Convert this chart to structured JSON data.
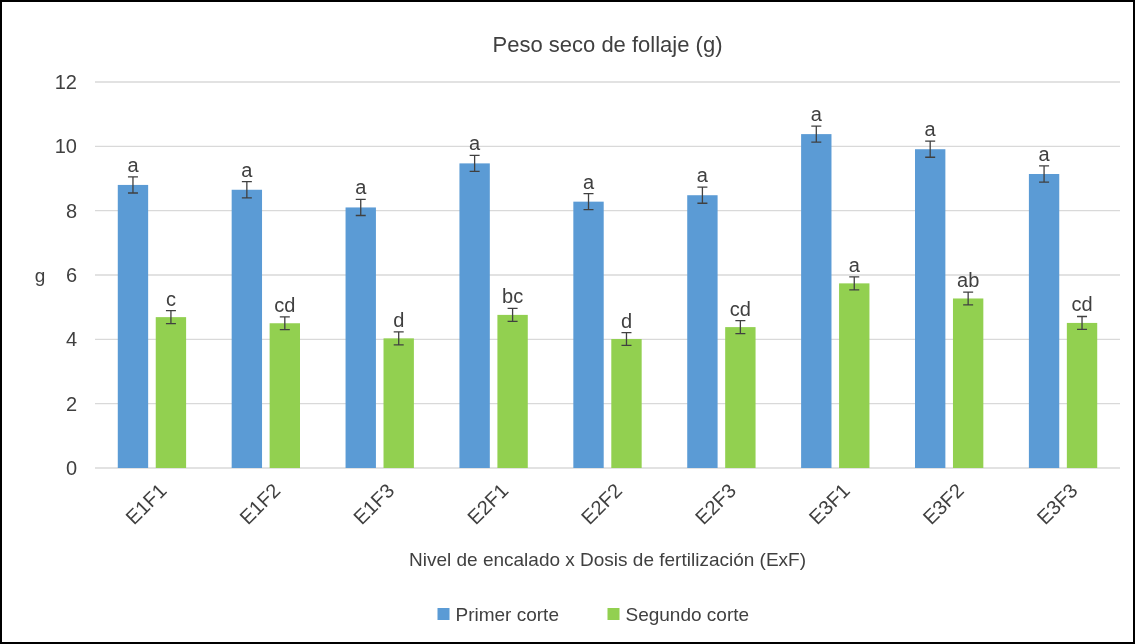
{
  "chart_data": {
    "type": "bar",
    "title": "Peso seco de follaje (g)",
    "xlabel": "Nivel de encalado x Dosis de fertilización (ExF)",
    "ylabel": "g",
    "categories": [
      "E1F1",
      "E1F2",
      "E1F3",
      "E2F1",
      "E2F2",
      "E2F3",
      "E3F1",
      "E3F2",
      "E3F3"
    ],
    "series": [
      {
        "name": "Primer corte",
        "color": "#5b9bd5",
        "values": [
          8.8,
          8.65,
          8.1,
          9.47,
          8.28,
          8.48,
          10.38,
          9.91,
          9.14
        ],
        "errors": [
          0.25,
          0.25,
          0.25,
          0.25,
          0.25,
          0.25,
          0.25,
          0.25,
          0.25
        ]
      },
      {
        "name": "Segundo corte",
        "color": "#92d050",
        "values": [
          4.69,
          4.5,
          4.03,
          4.76,
          4.01,
          4.38,
          5.74,
          5.27,
          4.51
        ],
        "errors": [
          0.2,
          0.2,
          0.2,
          0.2,
          0.2,
          0.2,
          0.2,
          0.2,
          0.2
        ]
      }
    ],
    "ylim": [
      0,
      12
    ],
    "yticks": [
      0,
      2,
      4,
      6,
      8,
      10,
      12
    ],
    "grid": "y",
    "legend": "bottom",
    "annotations": [
      {
        "text": "a",
        "x": "E1F1",
        "y": 8.8
      },
      {
        "text": "a",
        "x": "E1F2",
        "y": 8.65
      },
      {
        "text": "a",
        "x": "E1F3",
        "y": 8.1
      },
      {
        "text": "a",
        "x": "E2F1",
        "y": 9.47
      },
      {
        "text": "a",
        "x": "E2F2",
        "y": 8.28
      },
      {
        "text": "a",
        "x": "E2F3",
        "y": 8.48
      },
      {
        "text": "a",
        "x": "E3F1",
        "y": 10.38
      },
      {
        "text": "a",
        "x": "E3F2",
        "y": 9.91
      },
      {
        "text": "a",
        "x": "E3F3",
        "y": 9.14
      },
      {
        "text": "c",
        "x": "E1F1",
        "y": 4.69
      },
      {
        "text": "cd",
        "x": "E1F2",
        "y": 4.5
      },
      {
        "text": "d",
        "x": "E1F3",
        "y": 4.03
      },
      {
        "text": "bc",
        "x": "E2F1",
        "y": 4.76
      },
      {
        "text": "d",
        "x": "E2F2",
        "y": 4.01
      },
      {
        "text": "cd",
        "x": "E2F3",
        "y": 4.38
      },
      {
        "text": "a",
        "x": "E3F1",
        "y": 5.74
      },
      {
        "text": "ab",
        "x": "E3F2",
        "y": 5.27
      },
      {
        "text": "cd",
        "x": "E3F3",
        "y": 4.51
      }
    ]
  }
}
